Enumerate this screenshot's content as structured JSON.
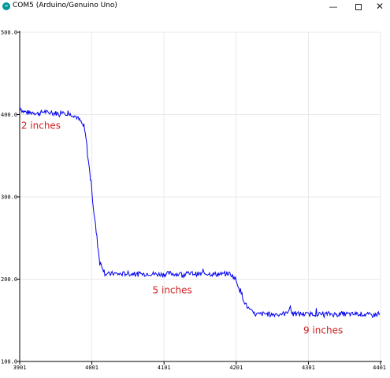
{
  "window": {
    "title": "COM5 (Arduino/Genuino Uno)",
    "app_icon": "arduino-icon",
    "buttons": {
      "minimize": "—",
      "close": "✕"
    }
  },
  "chart_data": {
    "type": "line",
    "title": "",
    "xlabel": "",
    "ylabel": "",
    "xlim": [
      3901,
      4401
    ],
    "ylim": [
      100,
      500
    ],
    "x_ticks": [
      "3901",
      "4001",
      "4101",
      "4201",
      "4301",
      "4401"
    ],
    "y_ticks": [
      "500.0",
      "400.0",
      "300.0",
      "200.0",
      "100.0"
    ],
    "grid": true,
    "series": [
      {
        "color": "#0000ee",
        "points": [
          [
            3901,
            410
          ],
          [
            3905,
            404
          ],
          [
            3910,
            403
          ],
          [
            3915,
            402
          ],
          [
            3920,
            403
          ],
          [
            3925,
            401
          ],
          [
            3930,
            402
          ],
          [
            3935,
            404
          ],
          [
            3940,
            402
          ],
          [
            3945,
            401
          ],
          [
            3950,
            402
          ],
          [
            3955,
            401
          ],
          [
            3960,
            404
          ],
          [
            3965,
            402
          ],
          [
            3970,
            400
          ],
          [
            3975,
            400
          ],
          [
            3980,
            397
          ],
          [
            3985,
            392
          ],
          [
            3990,
            385
          ],
          [
            3993,
            370
          ],
          [
            3996,
            345
          ],
          [
            4000,
            315
          ],
          [
            4004,
            280
          ],
          [
            4008,
            250
          ],
          [
            4012,
            220
          ],
          [
            4016,
            215
          ],
          [
            4019,
            207
          ],
          [
            4025,
            206
          ],
          [
            4030,
            207
          ],
          [
            4040,
            206
          ],
          [
            4050,
            207
          ],
          [
            4060,
            206
          ],
          [
            4070,
            206
          ],
          [
            4080,
            207
          ],
          [
            4090,
            206
          ],
          [
            4100,
            206
          ],
          [
            4110,
            207
          ],
          [
            4120,
            206
          ],
          [
            4130,
            206
          ],
          [
            4140,
            207
          ],
          [
            4150,
            206
          ],
          [
            4160,
            207
          ],
          [
            4170,
            206
          ],
          [
            4180,
            206
          ],
          [
            4190,
            207
          ],
          [
            4195,
            205
          ],
          [
            4200,
            200
          ],
          [
            4205,
            190
          ],
          [
            4210,
            178
          ],
          [
            4215,
            168
          ],
          [
            4220,
            162
          ],
          [
            4225,
            158
          ],
          [
            4230,
            157
          ],
          [
            4240,
            158
          ],
          [
            4250,
            157
          ],
          [
            4260,
            158
          ],
          [
            4270,
            158
          ],
          [
            4275,
            165
          ],
          [
            4280,
            157
          ],
          [
            4290,
            158
          ],
          [
            4300,
            157
          ],
          [
            4310,
            158
          ],
          [
            4320,
            157
          ],
          [
            4330,
            158
          ],
          [
            4340,
            157
          ],
          [
            4350,
            158
          ],
          [
            4360,
            157
          ],
          [
            4370,
            158
          ],
          [
            4380,
            157
          ],
          [
            4390,
            156
          ],
          [
            4400,
            158
          ]
        ]
      }
    ],
    "annotations": [
      {
        "text": "2 inches",
        "x": 3903,
        "y": 383
      },
      {
        "text": "5 inches",
        "x": 4085,
        "y": 183
      },
      {
        "text": "9 inches",
        "x": 4294,
        "y": 134
      }
    ],
    "annotation_color": "#d22020"
  }
}
